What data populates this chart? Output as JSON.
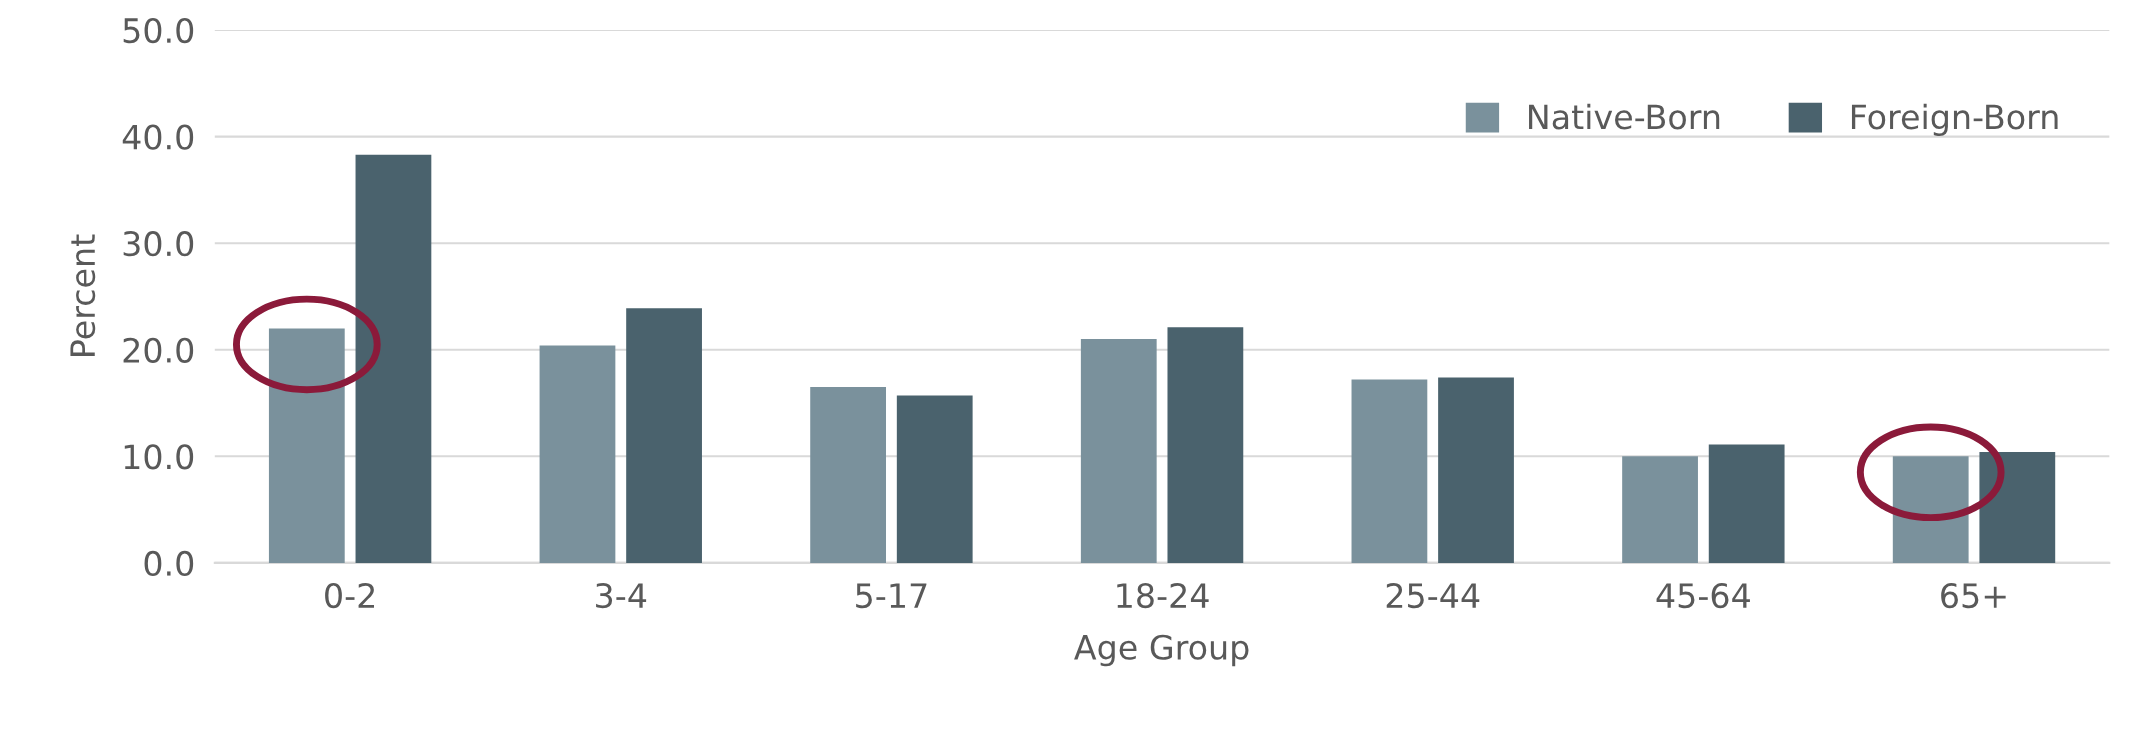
{
  "chart_data": {
    "type": "bar",
    "xlabel": "Age Group",
    "ylabel": "Percent",
    "categories": [
      "0-2",
      "3-4",
      "5-17",
      "18-24",
      "25-44",
      "45-64",
      "65+"
    ],
    "series": [
      {
        "name": "Native-Born",
        "color": "#7a919c",
        "values": [
          22.0,
          20.4,
          16.5,
          21.0,
          17.2,
          10.0,
          10.0
        ]
      },
      {
        "name": "Foreign-Born",
        "color": "#4a626d",
        "values": [
          38.3,
          23.9,
          15.7,
          22.1,
          17.4,
          11.1,
          10.4
        ]
      }
    ],
    "ylim": [
      0,
      50
    ],
    "yticks": [
      {
        "value": 0,
        "label": "0.0"
      },
      {
        "value": 10,
        "label": "10.0"
      },
      {
        "value": 20,
        "label": "20.0"
      },
      {
        "value": 30,
        "label": "30.0"
      },
      {
        "value": 40,
        "label": "40.0"
      },
      {
        "value": 50,
        "label": "50.0"
      }
    ],
    "grid": "y",
    "legend": "top right"
  }
}
